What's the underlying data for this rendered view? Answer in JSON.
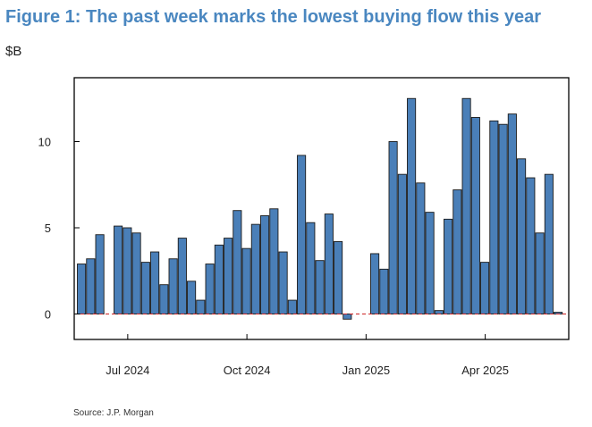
{
  "header": {
    "title": "Figure 1: The past week marks the lowest buying flow this year",
    "unit": "$B"
  },
  "footer": {
    "source": "Source: J.P. Morgan"
  },
  "colors": {
    "bar": "#4a7fb8",
    "bar_edge": "#1a1a1a",
    "title": "#4a87c0",
    "zero_line": "#cc2222"
  },
  "chart_data": {
    "type": "bar",
    "title": "Figure 1: The past week marks the lowest buying flow this year",
    "ylabel": "$B",
    "xlabel": "",
    "ylim": [
      -1.5,
      13.5
    ],
    "yticks": [
      0,
      5,
      10
    ],
    "grid": false,
    "legend": "none",
    "x_tick_labels": [
      {
        "label": "Jul 2024",
        "index": 5
      },
      {
        "label": "Oct 2024",
        "index": 18
      },
      {
        "label": "Jan 2025",
        "index": 31
      },
      {
        "label": "Apr 2025",
        "index": 44
      }
    ],
    "zero_line": {
      "value": 0,
      "style": "dashed"
    },
    "series": [
      {
        "values": [
          2.9,
          3.2,
          4.6,
          null,
          5.1,
          5.0,
          4.7,
          3.0,
          3.6,
          1.7,
          3.2,
          4.4,
          1.9,
          0.8,
          2.9,
          4.0,
          4.4,
          6.0,
          3.8,
          5.2,
          5.7,
          6.1,
          3.6,
          0.8,
          9.2,
          5.3,
          3.1,
          5.8,
          4.2,
          -0.3,
          null,
          null,
          3.5,
          2.6,
          10.0,
          8.1,
          12.5,
          7.6,
          5.9,
          0.2,
          5.5,
          7.2,
          12.5,
          11.4,
          3.0,
          11.2,
          11.0,
          11.6,
          9.0,
          7.9,
          4.7,
          8.1,
          0.1
        ]
      }
    ]
  }
}
